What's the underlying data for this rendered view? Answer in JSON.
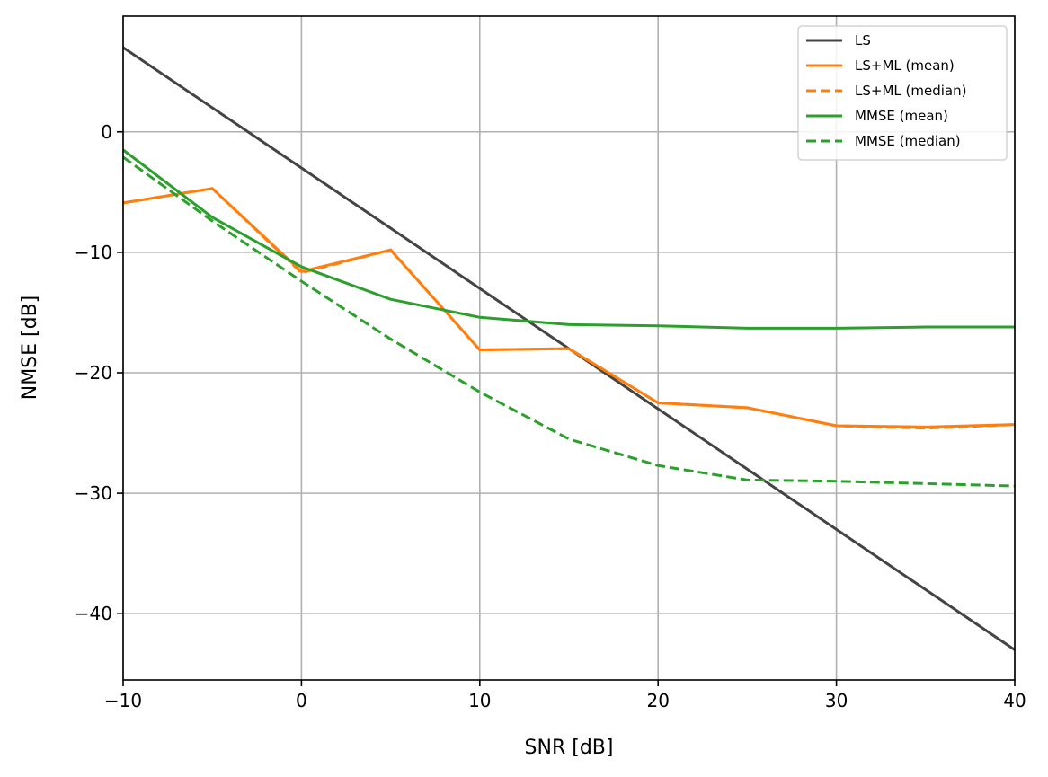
{
  "chart_data": {
    "type": "line",
    "title": "",
    "xlabel": "SNR [dB]",
    "ylabel": "NMSE [dB]",
    "xlim": [
      -10,
      40
    ],
    "ylim": [
      -45.5,
      9.6
    ],
    "xticks": [
      -10,
      0,
      10,
      20,
      30,
      40
    ],
    "xtick_labels": [
      "−10",
      "0",
      "10",
      "20",
      "30",
      "40"
    ],
    "yticks": [
      0,
      -10,
      -20,
      -30,
      -40
    ],
    "ytick_labels": [
      "0",
      "−10",
      "−20",
      "−30",
      "−40"
    ],
    "grid": true,
    "legend_position": "top-right",
    "x": [
      -10,
      -5,
      0,
      5,
      10,
      15,
      20,
      25,
      30,
      35,
      40
    ],
    "series": [
      {
        "name": "LS",
        "color": "#444444",
        "dash": "solid",
        "values": [
          7,
          2,
          -3,
          -8,
          -13,
          -18,
          -23,
          -28,
          -33,
          -38,
          -43
        ]
      },
      {
        "name": "LS+ML (mean)",
        "color": "#ff7f0e",
        "dash": "solid",
        "values": [
          -5.9,
          -4.7,
          -11.6,
          -9.8,
          -18.1,
          -18.0,
          -22.5,
          -22.9,
          -24.4,
          -24.5,
          -24.3
        ]
      },
      {
        "name": "LS+ML (median)",
        "color": "#ff7f0e",
        "dash": "dashed",
        "values": [
          -5.9,
          -4.7,
          -11.7,
          -9.8,
          -18.1,
          -18.0,
          -22.5,
          -22.9,
          -24.4,
          -24.6,
          -24.3
        ]
      },
      {
        "name": "MMSE (mean)",
        "color": "#2ca02c",
        "dash": "solid",
        "values": [
          -1.5,
          -7.1,
          -11.2,
          -13.9,
          -15.4,
          -16.0,
          -16.1,
          -16.3,
          -16.3,
          -16.2,
          -16.2
        ]
      },
      {
        "name": "MMSE (median)",
        "color": "#2ca02c",
        "dash": "dashed",
        "values": [
          -2.1,
          -7.4,
          -12.4,
          -17.2,
          -21.6,
          -25.5,
          -27.7,
          -28.9,
          -29.0,
          -29.2,
          -29.4
        ]
      }
    ]
  }
}
